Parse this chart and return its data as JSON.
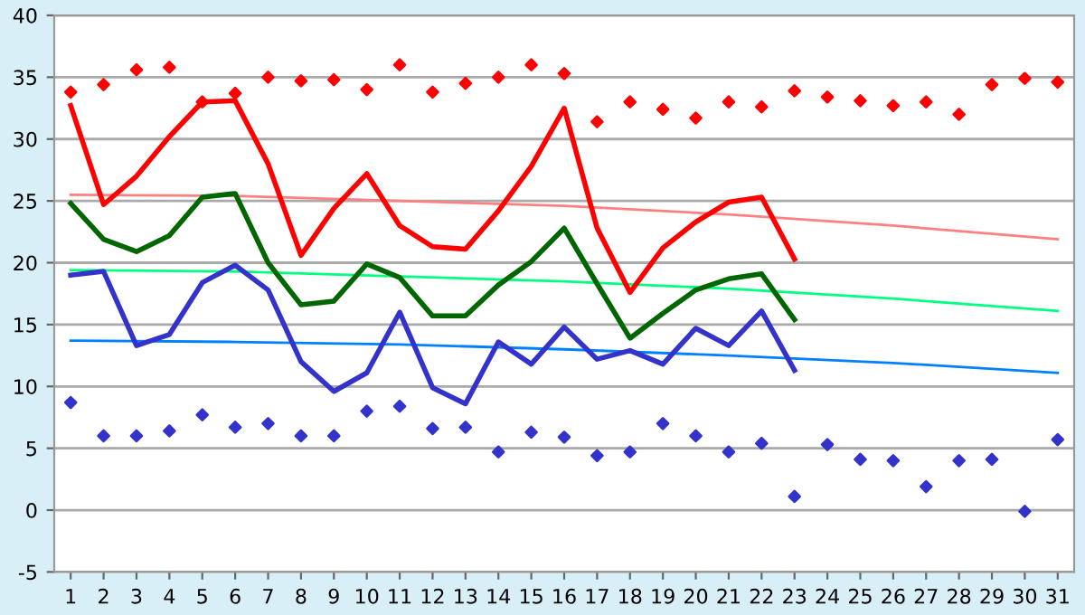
{
  "chart_data": {
    "type": "line",
    "x": [
      1,
      2,
      3,
      4,
      5,
      6,
      7,
      8,
      9,
      10,
      11,
      12,
      13,
      14,
      15,
      16,
      17,
      18,
      19,
      20,
      21,
      22,
      23,
      24,
      25,
      26,
      27,
      28,
      29,
      30,
      31
    ],
    "xlim": [
      0.5,
      31.5
    ],
    "xticks": [
      1,
      2,
      3,
      4,
      5,
      6,
      7,
      8,
      9,
      10,
      11,
      12,
      13,
      14,
      15,
      16,
      17,
      18,
      19,
      20,
      21,
      22,
      23,
      24,
      25,
      26,
      27,
      28,
      29,
      30,
      31
    ],
    "ylim": [
      -5,
      40
    ],
    "yticks": [
      -5,
      0,
      5,
      10,
      15,
      20,
      25,
      30,
      35,
      40
    ],
    "grid": "y",
    "line_style": "solid",
    "series": [
      {
        "type": "scatter",
        "marker": "diamond",
        "color": "#ff0000",
        "values": [
          33.8,
          34.4,
          35.6,
          35.8,
          33.0,
          33.7,
          35.0,
          34.7,
          34.8,
          34.0,
          36.0,
          33.8,
          34.5,
          35.0,
          36.0,
          35.3,
          31.4,
          33.0,
          32.4,
          31.7,
          33.0,
          32.6,
          33.9,
          33.4,
          33.1,
          32.7,
          33.0,
          32.0,
          34.4,
          34.9,
          34.6
        ]
      },
      {
        "type": "scatter",
        "marker": "diamond",
        "color": "#3333cc",
        "values": [
          8.7,
          6.0,
          6.0,
          6.4,
          7.7,
          6.7,
          7.0,
          6.0,
          6.0,
          8.0,
          8.4,
          6.6,
          6.7,
          4.7,
          6.3,
          5.9,
          4.4,
          4.7,
          7.0,
          6.0,
          4.7,
          5.4,
          1.1,
          5.3,
          4.1,
          4.0,
          1.9,
          4.0,
          4.1,
          -0.1,
          5.7
        ]
      },
      {
        "type": "line",
        "color": "#ff8080",
        "x": [
          1,
          6,
          11,
          16,
          21,
          26,
          31
        ],
        "values": [
          25.5,
          25.4,
          25.0,
          24.6,
          23.9,
          23.0,
          21.9
        ]
      },
      {
        "type": "line",
        "color": "#00ff80",
        "x": [
          1,
          6,
          11,
          16,
          21,
          26,
          31
        ],
        "values": [
          19.4,
          19.3,
          18.9,
          18.5,
          17.9,
          17.1,
          16.1
        ]
      },
      {
        "type": "line",
        "color": "#0080ff",
        "x": [
          1,
          6,
          11,
          16,
          21,
          26,
          31
        ],
        "values": [
          13.7,
          13.6,
          13.4,
          13.0,
          12.5,
          11.9,
          11.1
        ]
      },
      {
        "color": "#ff0000",
        "x": [
          1,
          2,
          3,
          4,
          5,
          6,
          7,
          8,
          9,
          10,
          11,
          12,
          13,
          14,
          15,
          16,
          17,
          18,
          19,
          20,
          21,
          22,
          23
        ],
        "values": [
          32.7,
          24.7,
          27.0,
          30.2,
          33.0,
          33.1,
          28.0,
          20.6,
          24.4,
          27.2,
          23.0,
          21.3,
          21.1,
          24.2,
          27.8,
          32.5,
          22.8,
          17.6,
          21.2,
          23.3,
          24.9,
          25.3,
          20.3
        ]
      },
      {
        "color": "#006600",
        "x": [
          1,
          2,
          3,
          4,
          5,
          6,
          7,
          8,
          9,
          10,
          11,
          12,
          13,
          14,
          15,
          16,
          17,
          18,
          19,
          20,
          21,
          22,
          23
        ],
        "values": [
          24.8,
          21.9,
          20.9,
          22.2,
          25.3,
          25.6,
          20.0,
          16.6,
          16.9,
          19.9,
          18.8,
          15.7,
          15.7,
          18.2,
          20.1,
          22.8,
          18.3,
          13.9,
          15.9,
          17.8,
          18.7,
          19.1,
          15.4
        ]
      },
      {
        "color": "#3333cc",
        "x": [
          1,
          2,
          3,
          4,
          5,
          6,
          7,
          8,
          9,
          10,
          11,
          12,
          13,
          14,
          15,
          16,
          17,
          18,
          19,
          20,
          21,
          22,
          23
        ],
        "values": [
          19.0,
          19.3,
          13.3,
          14.2,
          18.4,
          19.8,
          17.8,
          12.0,
          9.6,
          11.1,
          16.0,
          9.9,
          8.6,
          13.6,
          11.8,
          14.8,
          12.2,
          12.9,
          11.8,
          14.7,
          13.3,
          16.1,
          11.3
        ]
      }
    ]
  }
}
